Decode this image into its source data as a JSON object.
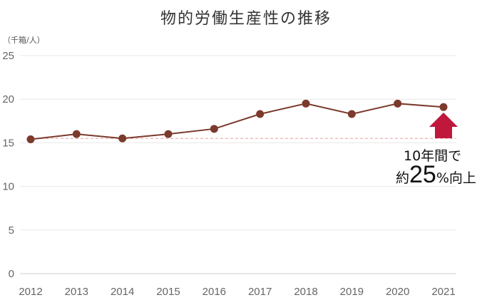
{
  "chart_data": {
    "type": "line",
    "title": "物的労働生産性の推移",
    "unit_label": "（千箱/人）",
    "categories": [
      "2012",
      "2013",
      "2014",
      "2015",
      "2016",
      "2017",
      "2018",
      "2019",
      "2020",
      "2021"
    ],
    "series": [
      {
        "values": [
          15.4,
          16.0,
          15.5,
          16.0,
          16.6,
          18.3,
          19.5,
          18.3,
          19.5,
          19.1
        ]
      }
    ],
    "reference_line": 15.5,
    "ylim": [
      0,
      25
    ],
    "yticks": [
      0,
      5,
      10,
      15,
      20,
      25
    ],
    "grid": true,
    "colors": {
      "line": "#7b3a2c",
      "marker": "#7b3a2c",
      "arrow": "#c0183d",
      "reference": "#e8a0a0",
      "grid": "#e8e8e8"
    },
    "annotation": {
      "line1": "10年間で",
      "prefix": "約",
      "number": "25",
      "suffix": "%向上"
    }
  }
}
